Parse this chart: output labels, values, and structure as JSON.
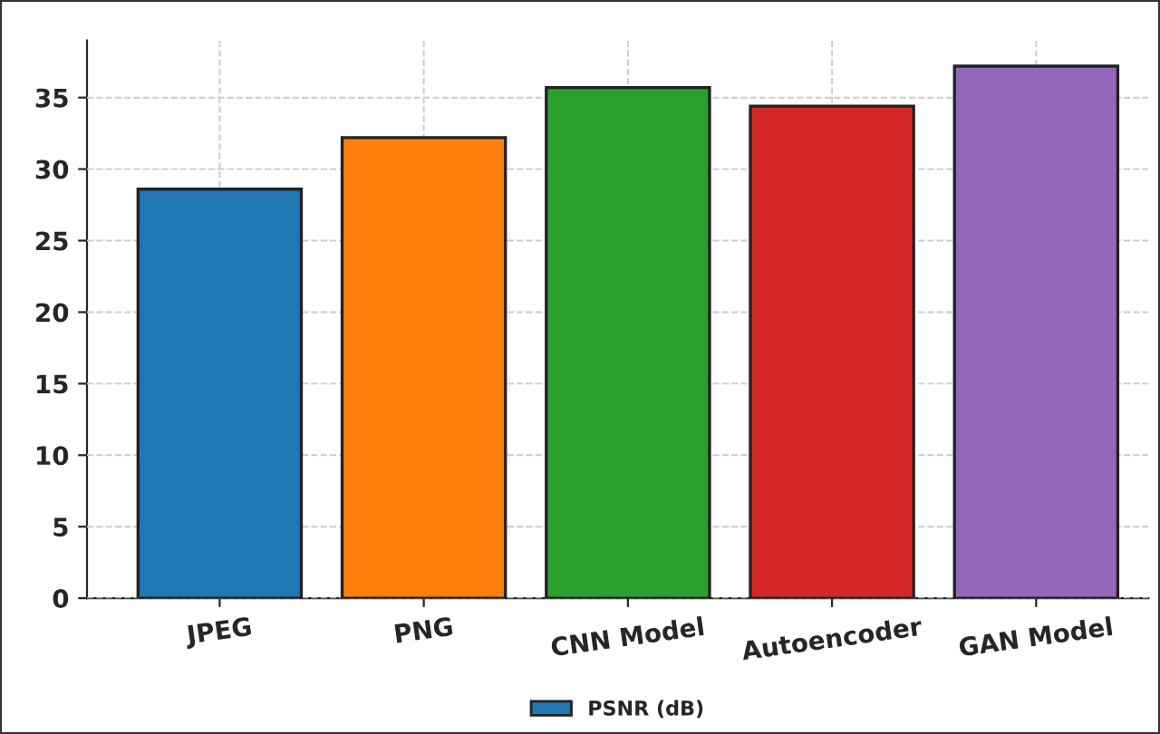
{
  "chart_data": {
    "type": "bar",
    "categories": [
      "JPEG",
      "PNG",
      "CNN Model",
      "Autoencoder",
      "GAN Model"
    ],
    "series": [
      {
        "name": "PSNR (dB)",
        "colors": [
          "#1f77b4",
          "#ff7f0e",
          "#2ca02c",
          "#d62728",
          "#9467bd"
        ],
        "values": [
          28.6,
          32.2,
          35.7,
          34.4,
          37.2
        ]
      }
    ],
    "ylim": [
      0,
      39
    ],
    "yticks": [
      0,
      5,
      10,
      15,
      20,
      25,
      30,
      35
    ],
    "grid": true,
    "legend": "bottom"
  }
}
